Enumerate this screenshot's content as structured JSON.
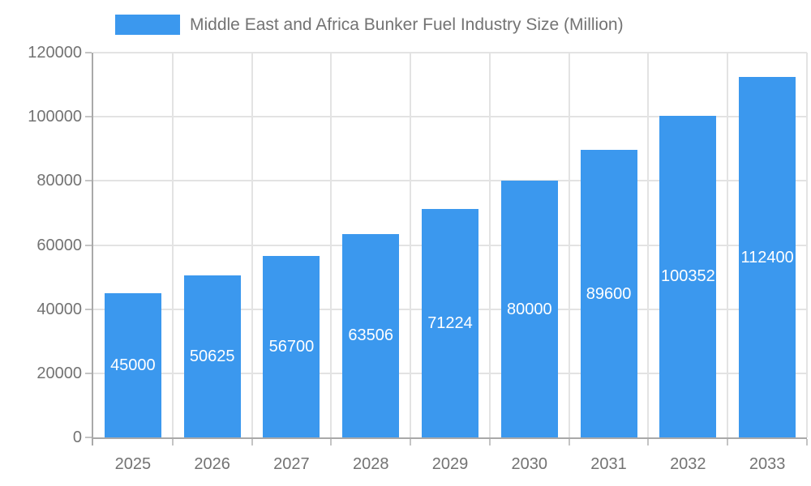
{
  "chart_data": {
    "type": "bar",
    "title": "Middle East and Africa Bunker Fuel Industry Size (Million)",
    "categories": [
      "2025",
      "2026",
      "2027",
      "2028",
      "2029",
      "2030",
      "2031",
      "2032",
      "2033"
    ],
    "values": [
      45000,
      50625,
      56700,
      63506,
      71224,
      80000,
      89600,
      100352,
      112400
    ],
    "bar_labels": [
      "45000",
      "50625",
      "56700",
      "63506",
      "71224",
      "80000",
      "89600",
      "100352",
      "112400"
    ],
    "xlabel": "",
    "ylabel": "",
    "ylim": [
      0,
      120000
    ],
    "ytick_step": 20000,
    "ytick_labels": [
      "0",
      "20000",
      "40000",
      "60000",
      "80000",
      "100000",
      "120000"
    ],
    "grid": true,
    "legend_position": "top",
    "colors": {
      "bar": "#3B98EE",
      "bar_label": "#FFFFFF",
      "grid_line": "#E3E3E3",
      "axis_line": "#A9A9A9",
      "tick": "#C4C4C4",
      "text": "#737373"
    }
  }
}
